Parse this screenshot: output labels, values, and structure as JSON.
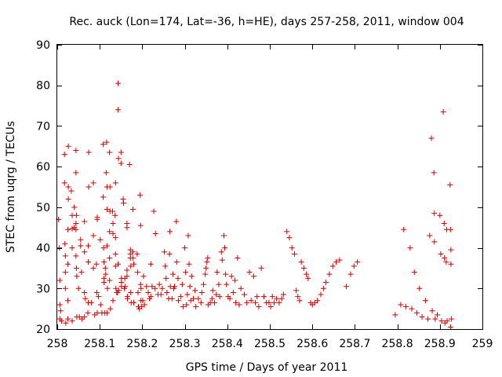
{
  "chart_data": {
    "type": "scatter",
    "title": "Rec. auck (Lon=174, Lat=-36, h=HE), days 257-258, 2011, window 004",
    "xlabel": "GPS time / Days of year 2011",
    "ylabel": "STEC from uqrg / TECUs",
    "xlim": [
      258,
      259
    ],
    "ylim": [
      20,
      90
    ],
    "xticks": [
      258,
      258.1,
      258.2,
      258.3,
      258.4,
      258.5,
      258.6,
      258.7,
      258.8,
      258.9,
      259
    ],
    "xtick_labels": [
      "258",
      "258.1",
      "258.2",
      "258.3",
      "258.4",
      "258.5",
      "258.6",
      "258.7",
      "258.8",
      "258.9",
      "259"
    ],
    "yticks": [
      20,
      30,
      40,
      50,
      60,
      70,
      80,
      90
    ],
    "ytick_labels": [
      "20",
      "30",
      "40",
      "50",
      "60",
      "70",
      "80",
      "90"
    ],
    "grid": false,
    "marker": "plus",
    "color": "#cc0000",
    "points": [
      [
        258.003,
        47.0
      ],
      [
        258.005,
        40.0
      ],
      [
        258.006,
        32.0
      ],
      [
        258.006,
        26.0
      ],
      [
        258.006,
        22.5
      ],
      [
        258.008,
        24.5
      ],
      [
        258.01,
        22.0
      ],
      [
        258.017,
        63.0
      ],
      [
        258.017,
        56.0
      ],
      [
        258.018,
        41.0
      ],
      [
        258.019,
        38.0
      ],
      [
        258.019,
        34.0
      ],
      [
        258.019,
        30.0
      ],
      [
        258.02,
        21.5
      ],
      [
        258.026,
        65.0
      ],
      [
        258.026,
        55.0
      ],
      [
        258.026,
        52.0
      ],
      [
        258.025,
        44.5
      ],
      [
        258.025,
        36.0
      ],
      [
        258.025,
        27.0
      ],
      [
        258.025,
        22.5
      ],
      [
        258.033,
        54.0
      ],
      [
        258.035,
        48.0
      ],
      [
        258.035,
        44.7
      ],
      [
        258.035,
        40.0
      ],
      [
        258.035,
        22.0
      ],
      [
        258.04,
        45.0
      ],
      [
        258.04,
        50.0
      ],
      [
        258.044,
        64.0
      ],
      [
        258.044,
        58.5
      ],
      [
        258.045,
        48.0
      ],
      [
        258.044,
        46.0
      ],
      [
        258.044,
        44.5
      ],
      [
        258.044,
        38.0
      ],
      [
        258.045,
        35.0
      ],
      [
        258.046,
        33.0
      ],
      [
        258.046,
        23.0
      ],
      [
        258.05,
        30.0
      ],
      [
        258.052,
        23.0
      ],
      [
        258.055,
        42.0
      ],
      [
        258.055,
        40.5
      ],
      [
        258.057,
        34.0
      ],
      [
        258.058,
        22.5
      ],
      [
        258.064,
        46.5
      ],
      [
        258.064,
        39.0
      ],
      [
        258.064,
        29.0
      ],
      [
        258.064,
        23.0
      ],
      [
        258.066,
        27.5
      ],
      [
        258.074,
        63.5
      ],
      [
        258.074,
        55.0
      ],
      [
        258.073,
        40.5
      ],
      [
        258.073,
        36.5
      ],
      [
        258.073,
        26.5
      ],
      [
        258.072,
        24.0
      ],
      [
        258.08,
        26.5
      ],
      [
        258.085,
        56.0
      ],
      [
        258.085,
        43.0
      ],
      [
        258.085,
        35.0
      ],
      [
        258.088,
        23.5
      ],
      [
        258.094,
        47.5
      ],
      [
        258.094,
        47.0
      ],
      [
        258.092,
        36.0
      ],
      [
        258.093,
        29.0
      ],
      [
        258.094,
        24.0
      ],
      [
        258.097,
        28.0
      ],
      [
        258.101,
        42.0
      ],
      [
        258.102,
        26.0
      ],
      [
        258.105,
        24.0
      ],
      [
        258.108,
        65.5
      ],
      [
        258.108,
        52.5
      ],
      [
        258.109,
        40.0
      ],
      [
        258.11,
        36.5
      ],
      [
        258.11,
        32.5
      ],
      [
        258.11,
        31.5
      ],
      [
        258.112,
        24.0
      ],
      [
        258.113,
        35.0
      ],
      [
        258.114,
        33.5
      ],
      [
        258.115,
        58.5
      ],
      [
        258.116,
        66.0
      ],
      [
        258.117,
        55.0
      ],
      [
        258.117,
        49.5
      ],
      [
        258.117,
        40.5
      ],
      [
        258.118,
        30.0
      ],
      [
        258.117,
        24.0
      ],
      [
        258.123,
        63.5
      ],
      [
        258.124,
        55.0
      ],
      [
        258.124,
        49.0
      ],
      [
        258.123,
        44.0
      ],
      [
        258.123,
        37.5
      ],
      [
        258.123,
        32.0
      ],
      [
        258.125,
        25.0
      ],
      [
        258.13,
        49.0
      ],
      [
        258.131,
        46.0
      ],
      [
        258.131,
        43.5
      ],
      [
        258.131,
        27.0
      ],
      [
        258.136,
        48.0
      ],
      [
        258.137,
        56.0
      ],
      [
        258.137,
        42.5
      ],
      [
        258.137,
        38.5
      ],
      [
        258.137,
        35.5
      ],
      [
        258.138,
        30.0
      ],
      [
        258.14,
        29.0
      ],
      [
        258.142,
        29.0
      ],
      [
        258.143,
        80.5
      ],
      [
        258.143,
        74.0
      ],
      [
        258.144,
        62.0
      ],
      [
        258.143,
        36.0
      ],
      [
        258.145,
        29.5
      ],
      [
        258.15,
        60.8
      ],
      [
        258.15,
        63.5
      ],
      [
        258.151,
        32.5
      ],
      [
        258.151,
        31.5
      ],
      [
        258.151,
        30.5
      ],
      [
        258.155,
        52.0
      ],
      [
        258.156,
        51.0
      ],
      [
        258.158,
        30.0
      ],
      [
        258.159,
        32.5
      ],
      [
        258.16,
        30.5
      ],
      [
        258.164,
        46.0
      ],
      [
        258.164,
        45.0
      ],
      [
        258.164,
        34.5
      ],
      [
        258.164,
        33.0
      ],
      [
        258.165,
        28.0
      ],
      [
        258.165,
        27.5
      ],
      [
        258.17,
        60.5
      ],
      [
        258.172,
        39.5
      ],
      [
        258.172,
        38.5
      ],
      [
        258.172,
        37.5
      ],
      [
        258.173,
        35.5
      ],
      [
        258.173,
        29.0
      ],
      [
        258.174,
        26.5
      ],
      [
        258.178,
        49.5
      ],
      [
        258.178,
        39.0
      ],
      [
        258.178,
        37.5
      ],
      [
        258.18,
        36.0
      ],
      [
        258.18,
        26.5
      ],
      [
        258.188,
        38.5
      ],
      [
        258.189,
        34.0
      ],
      [
        258.19,
        29.0
      ],
      [
        258.191,
        25.5
      ],
      [
        258.193,
        25.0
      ],
      [
        258.195,
        53.0
      ],
      [
        258.196,
        45.5
      ],
      [
        258.196,
        31.0
      ],
      [
        258.197,
        30.0
      ],
      [
        258.197,
        27.0
      ],
      [
        258.198,
        25.5
      ],
      [
        258.201,
        27.0
      ],
      [
        258.203,
        33.0
      ],
      [
        258.205,
        26.0
      ],
      [
        258.21,
        30.5
      ],
      [
        258.214,
        29.0
      ],
      [
        258.217,
        27.5
      ],
      [
        258.22,
        28.0
      ],
      [
        258.22,
        36.0
      ],
      [
        258.223,
        30.5
      ],
      [
        258.227,
        49.0
      ],
      [
        258.23,
        30.0
      ],
      [
        258.231,
        43.5
      ],
      [
        258.237,
        28.5
      ],
      [
        258.24,
        31.0
      ],
      [
        258.244,
        28.5
      ],
      [
        258.247,
        30.0
      ],
      [
        258.252,
        39.0
      ],
      [
        258.254,
        35.5
      ],
      [
        258.256,
        32.5
      ],
      [
        258.258,
        29.0
      ],
      [
        258.262,
        27.5
      ],
      [
        258.264,
        38.5
      ],
      [
        258.265,
        44.0
      ],
      [
        258.266,
        30.5
      ],
      [
        258.27,
        27.5
      ],
      [
        258.272,
        33.5
      ],
      [
        258.274,
        30.0
      ],
      [
        258.276,
        30.5
      ],
      [
        258.28,
        46.5
      ],
      [
        258.281,
        36.5
      ],
      [
        258.284,
        32.5
      ],
      [
        258.285,
        27.0
      ],
      [
        258.29,
        28.0
      ],
      [
        258.294,
        31.0
      ],
      [
        258.296,
        25.5
      ],
      [
        258.3,
        40.0
      ],
      [
        258.302,
        34.0
      ],
      [
        258.304,
        26.0
      ],
      [
        258.306,
        28.5
      ],
      [
        258.308,
        43.0
      ],
      [
        258.31,
        36.0
      ],
      [
        258.312,
        30.5
      ],
      [
        258.314,
        27.0
      ],
      [
        258.316,
        33.0
      ],
      [
        258.32,
        27.5
      ],
      [
        258.324,
        29.5
      ],
      [
        258.326,
        25.5
      ],
      [
        258.332,
        27.5
      ],
      [
        258.338,
        26.5
      ],
      [
        258.34,
        29.0
      ],
      [
        258.344,
        31.0
      ],
      [
        258.348,
        33.5
      ],
      [
        258.35,
        35.0
      ],
      [
        258.352,
        36.5
      ],
      [
        258.354,
        37.5
      ],
      [
        258.355,
        26.0
      ],
      [
        258.36,
        26.5
      ],
      [
        258.364,
        27.5
      ],
      [
        258.366,
        29.5
      ],
      [
        258.37,
        26.5
      ],
      [
        258.374,
        28.5
      ],
      [
        258.376,
        34.0
      ],
      [
        258.38,
        31.0
      ],
      [
        258.382,
        28.0
      ],
      [
        258.386,
        39.0
      ],
      [
        258.388,
        37.0
      ],
      [
        258.392,
        43.0
      ],
      [
        258.394,
        40.0
      ],
      [
        258.396,
        33.5
      ],
      [
        258.398,
        31.0
      ],
      [
        258.402,
        28.0
      ],
      [
        258.406,
        27.5
      ],
      [
        258.41,
        33.0
      ],
      [
        258.414,
        29.0
      ],
      [
        258.418,
        32.0
      ],
      [
        258.42,
        26.5
      ],
      [
        258.424,
        37.5
      ],
      [
        258.428,
        26.0
      ],
      [
        258.432,
        30.0
      ],
      [
        258.44,
        28.5
      ],
      [
        258.446,
        26.5
      ],
      [
        258.452,
        34.0
      ],
      [
        258.456,
        27.0
      ],
      [
        258.462,
        33.0
      ],
      [
        258.466,
        26.5
      ],
      [
        258.47,
        28.0
      ],
      [
        258.474,
        25.5
      ],
      [
        258.48,
        35.0
      ],
      [
        258.486,
        28.0
      ],
      [
        258.492,
        26.5
      ],
      [
        258.498,
        26.5
      ],
      [
        258.502,
        25.5
      ],
      [
        258.506,
        28.0
      ],
      [
        258.51,
        26.5
      ],
      [
        258.516,
        27.5
      ],
      [
        258.522,
        26.5
      ],
      [
        258.528,
        27.5
      ],
      [
        258.532,
        28.5
      ],
      [
        258.54,
        44.0
      ],
      [
        258.546,
        42.5
      ],
      [
        258.552,
        40.0
      ],
      [
        258.558,
        38.5
      ],
      [
        258.562,
        29.5
      ],
      [
        258.566,
        28.0
      ],
      [
        258.57,
        27.0
      ],
      [
        258.574,
        36.5
      ],
      [
        258.58,
        35.0
      ],
      [
        258.586,
        33.5
      ],
      [
        258.59,
        32.5
      ],
      [
        258.596,
        26.5
      ],
      [
        258.6,
        26.0
      ],
      [
        258.606,
        26.5
      ],
      [
        258.612,
        27.0
      ],
      [
        258.62,
        28.5
      ],
      [
        258.626,
        30.0
      ],
      [
        258.632,
        31.5
      ],
      [
        258.64,
        33.5
      ],
      [
        258.648,
        35.5
      ],
      [
        258.656,
        36.5
      ],
      [
        258.664,
        37.0
      ],
      [
        258.68,
        30.5
      ],
      [
        258.69,
        33.5
      ],
      [
        258.698,
        35.5
      ],
      [
        258.706,
        36.5
      ],
      [
        258.795,
        23.5
      ],
      [
        258.808,
        26.0
      ],
      [
        258.815,
        44.5
      ],
      [
        258.82,
        25.5
      ],
      [
        258.83,
        40.0
      ],
      [
        258.834,
        25.0
      ],
      [
        258.84,
        34.0
      ],
      [
        258.846,
        24.0
      ],
      [
        258.852,
        30.0
      ],
      [
        258.858,
        23.0
      ],
      [
        258.866,
        27.0
      ],
      [
        258.872,
        22.5
      ],
      [
        258.876,
        43.0
      ],
      [
        258.88,
        67.0
      ],
      [
        258.882,
        24.5
      ],
      [
        258.886,
        58.5
      ],
      [
        258.887,
        48.5
      ],
      [
        258.887,
        41.5
      ],
      [
        258.889,
        22.5
      ],
      [
        258.894,
        23.5
      ],
      [
        258.9,
        48.0
      ],
      [
        258.902,
        38.5
      ],
      [
        258.904,
        22.0
      ],
      [
        258.908,
        73.5
      ],
      [
        258.91,
        46.0
      ],
      [
        258.911,
        37.5
      ],
      [
        258.912,
        21.5
      ],
      [
        258.915,
        36.5
      ],
      [
        258.916,
        44.5
      ],
      [
        258.917,
        22.0
      ],
      [
        258.924,
        55.5
      ],
      [
        258.925,
        44.5
      ],
      [
        258.926,
        39.5
      ],
      [
        258.926,
        36.0
      ],
      [
        258.927,
        22.5
      ],
      [
        258.925,
        20.5
      ]
    ]
  }
}
